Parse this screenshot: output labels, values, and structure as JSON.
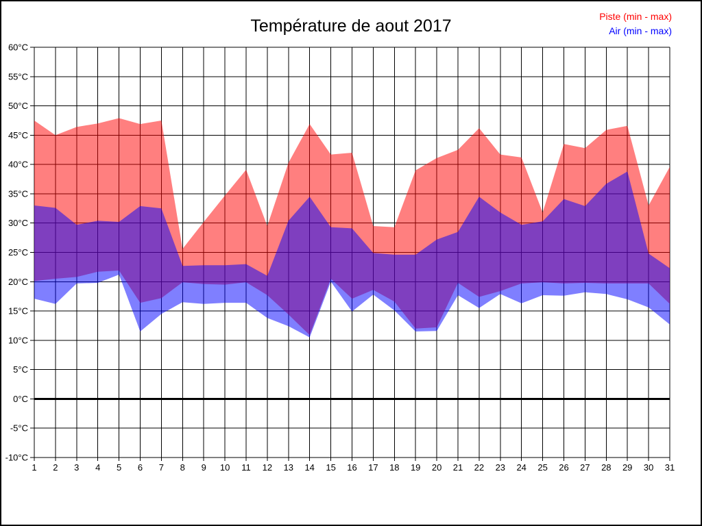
{
  "chart_data": {
    "type": "area",
    "title": "Température de aout 2017",
    "unit": "°C",
    "xlabel": "",
    "ylabel": "",
    "x": [
      1,
      2,
      3,
      4,
      5,
      6,
      7,
      8,
      9,
      10,
      11,
      12,
      13,
      14,
      15,
      16,
      17,
      18,
      19,
      20,
      21,
      22,
      23,
      24,
      25,
      26,
      27,
      28,
      29,
      30,
      31
    ],
    "ylim": [
      -10,
      60
    ],
    "ytick_step": 5,
    "ytick_labels": [
      "60°C",
      "55°C",
      "50°C",
      "45°C",
      "40°C",
      "35°C",
      "30°C",
      "25°C",
      "20°C",
      "15°C",
      "10°C",
      "5°C",
      "0°C",
      "-5°C",
      "-10°C"
    ],
    "grid": true,
    "zero_line_bold": true,
    "legend_position": "top-right",
    "axis_color": "#000000",
    "grid_color": "#000000",
    "background": "#ffffff",
    "series": [
      {
        "name": "Piste (min - max)",
        "legend_color": "#ff0000",
        "fill": "rgba(255,0,0,0.5)",
        "max": [
          47.5,
          45.0,
          46.4,
          47.0,
          47.9,
          46.9,
          47.5,
          25.6,
          30.2,
          34.7,
          39.1,
          29.5,
          40.3,
          46.9,
          41.7,
          42.0,
          29.5,
          29.3,
          39.0,
          41.1,
          42.5,
          46.2,
          41.7,
          41.2,
          31.8,
          43.5,
          42.8,
          45.9,
          46.6,
          33.0,
          39.6
        ],
        "min": [
          20.1,
          20.5,
          20.8,
          21.7,
          21.9,
          16.4,
          17.2,
          19.9,
          19.6,
          19.5,
          19.9,
          17.7,
          14.4,
          10.9,
          20.5,
          17.1,
          18.6,
          16.6,
          12.0,
          12.2,
          19.8,
          17.4,
          18.4,
          19.7,
          19.9,
          19.7,
          19.8,
          19.7,
          19.7,
          19.7,
          16.2
        ]
      },
      {
        "name": "Air (min - max)",
        "legend_color": "#0000ff",
        "fill": "rgba(0,0,255,0.5)",
        "max": [
          33.0,
          32.6,
          29.7,
          30.4,
          30.2,
          32.9,
          32.5,
          22.7,
          22.8,
          22.8,
          23.0,
          21.0,
          30.4,
          34.5,
          29.3,
          29.1,
          24.9,
          24.6,
          24.6,
          27.2,
          28.5,
          34.5,
          31.8,
          29.7,
          30.3,
          34.1,
          32.9,
          36.7,
          38.8,
          24.8,
          22.3
        ],
        "min": [
          17.1,
          16.2,
          19.7,
          19.8,
          21.2,
          11.5,
          14.5,
          16.5,
          16.2,
          16.4,
          16.4,
          13.8,
          12.4,
          10.5,
          20.0,
          14.9,
          17.8,
          15.1,
          11.5,
          11.6,
          17.7,
          15.5,
          17.9,
          16.3,
          17.7,
          17.6,
          18.2,
          17.9,
          17.0,
          15.6,
          12.7
        ]
      }
    ],
    "overlap_color_note": "#7f3fbf"
  }
}
